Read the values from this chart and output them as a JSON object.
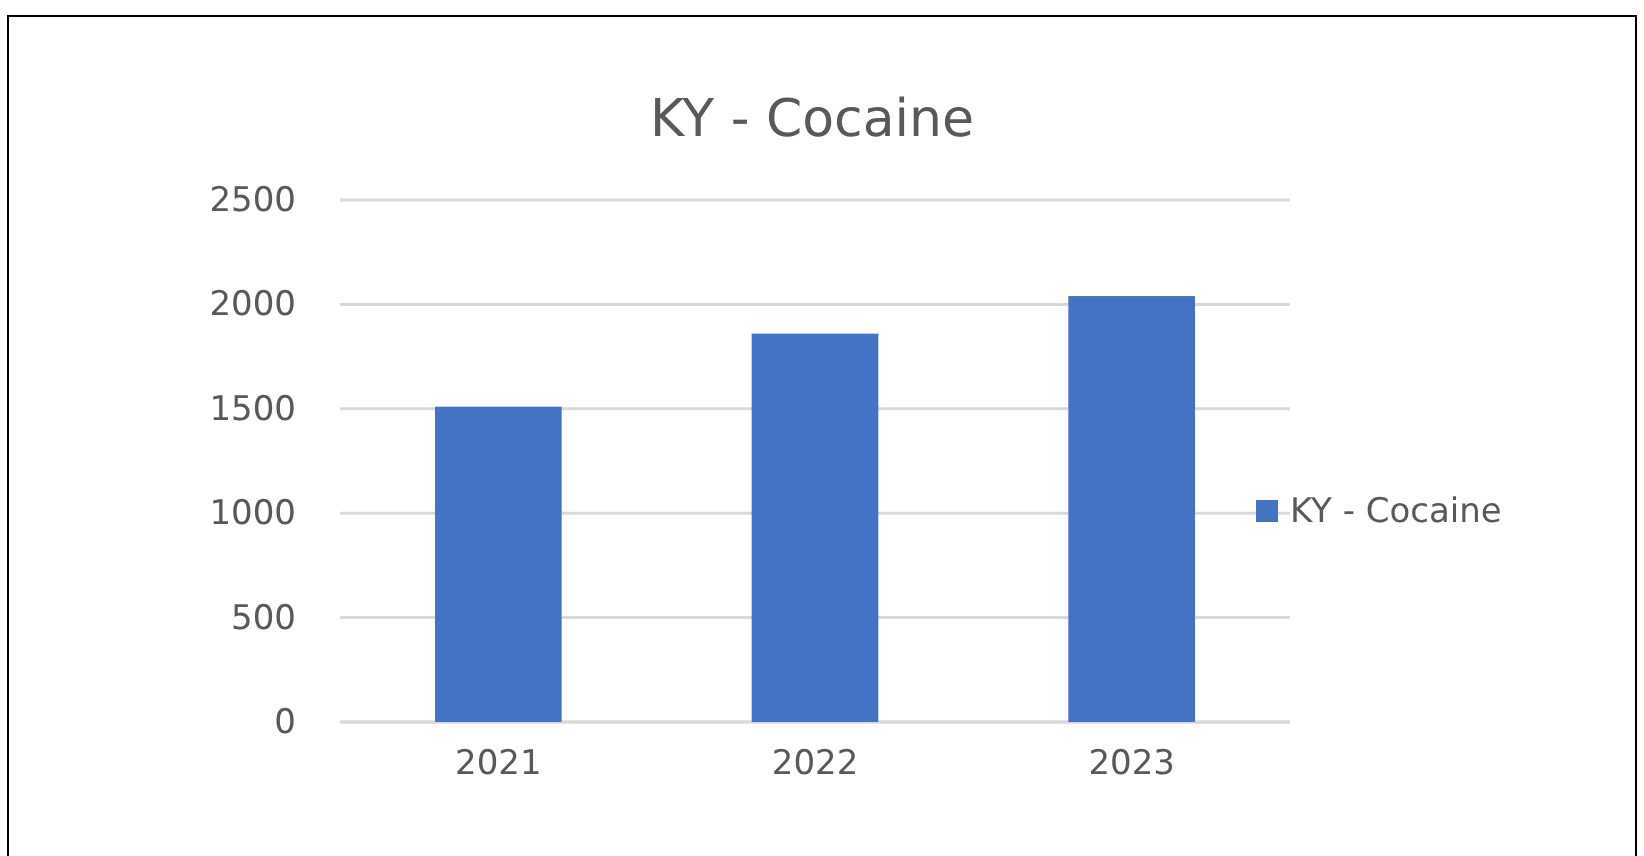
{
  "chart_data": {
    "type": "bar",
    "title": "KY - Cocaine",
    "categories": [
      "2021",
      "2022",
      "2023"
    ],
    "series": [
      {
        "name": "KY - Cocaine",
        "color": "#4472c4",
        "values": [
          1510,
          1860,
          2040
        ]
      }
    ],
    "ylim": [
      0,
      2500
    ],
    "yticks": [
      0,
      500,
      1000,
      1500,
      2000,
      2500
    ],
    "grid": "y",
    "legend": "right"
  }
}
